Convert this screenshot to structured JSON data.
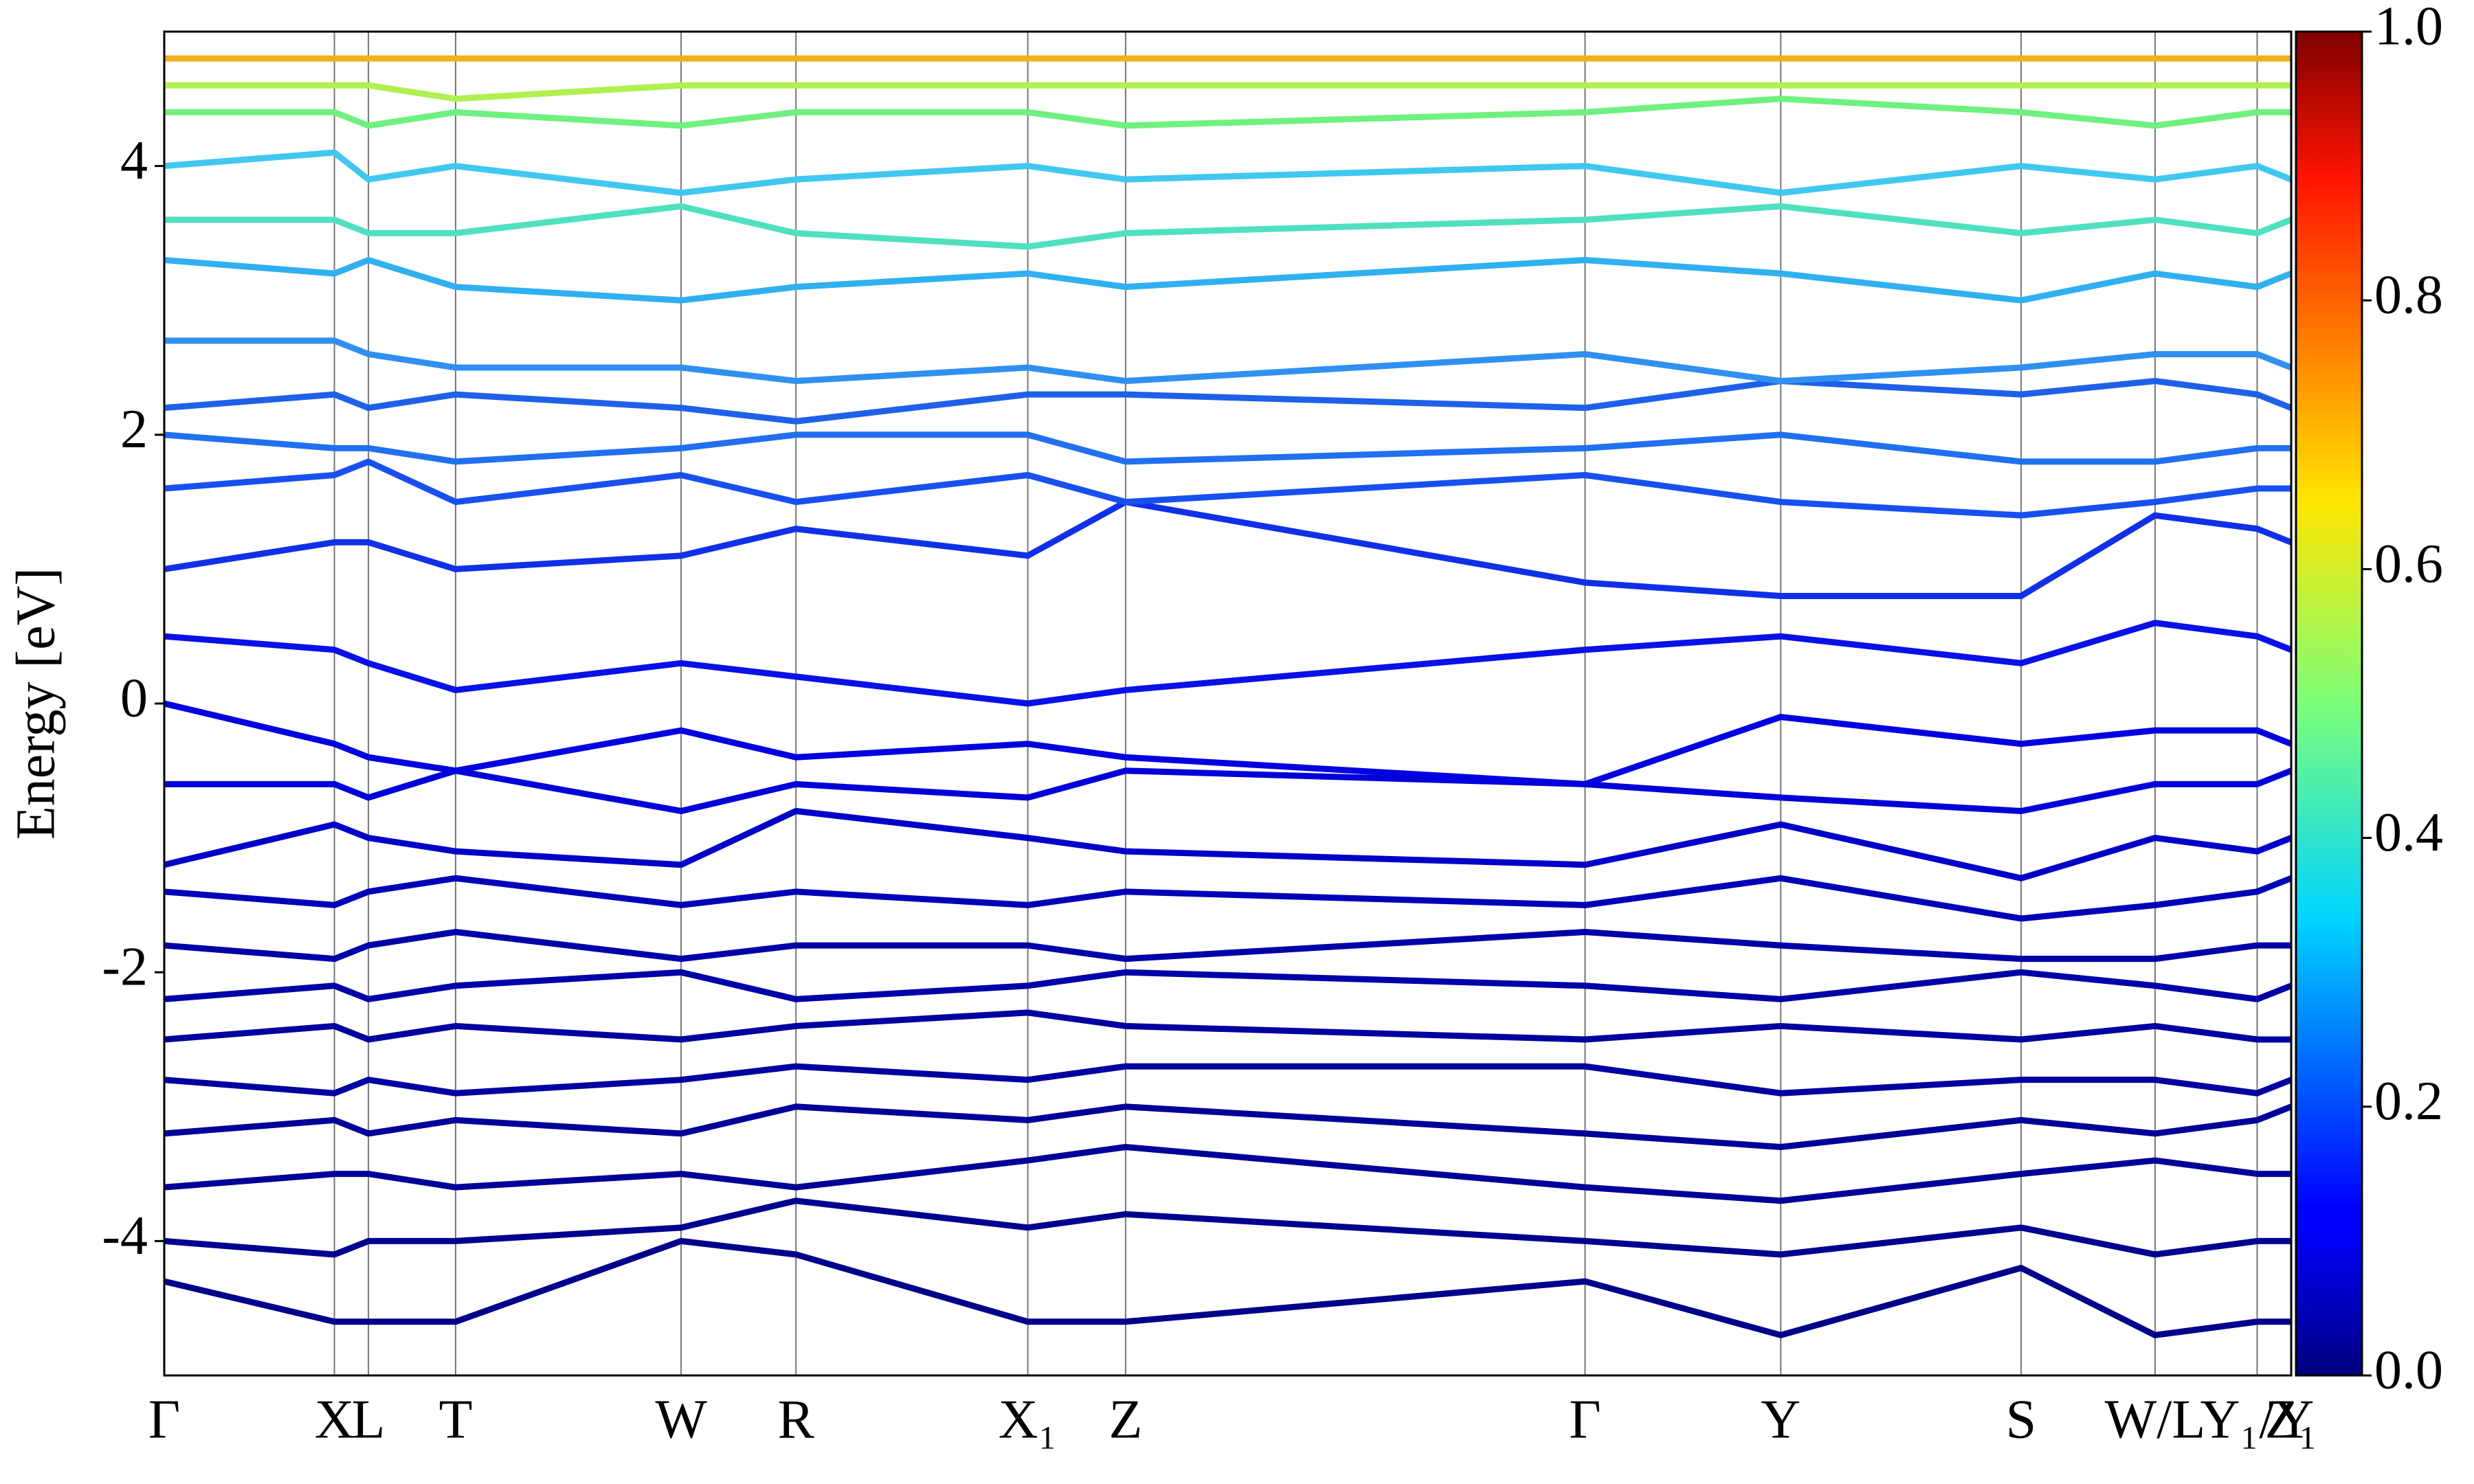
{
  "chart_data": {
    "type": "line",
    "ylabel": "Energy [eV]",
    "x": [
      0,
      0.08,
      0.096,
      0.137,
      0.243,
      0.297,
      0.406,
      0.452,
      0.668,
      0.76,
      0.873,
      0.936,
      0.984,
      1.0
    ],
    "xlim": [
      0,
      1.0
    ],
    "xticks": [
      {
        "value": 0,
        "label": "Γ"
      },
      {
        "value": 0.08,
        "label": "X"
      },
      {
        "value": 0.096,
        "label": "L"
      },
      {
        "value": 0.137,
        "label": "T"
      },
      {
        "value": 0.243,
        "label": "W"
      },
      {
        "value": 0.297,
        "label": "R"
      },
      {
        "value": 0.406,
        "label": "X₁"
      },
      {
        "value": 0.452,
        "label": "Z"
      },
      {
        "value": 0.668,
        "label": "Γ"
      },
      {
        "value": 0.76,
        "label": "Y"
      },
      {
        "value": 0.873,
        "label": "S"
      },
      {
        "value": 0.936,
        "label": "W/L"
      },
      {
        "value": 0.984,
        "label": "Y₁/Y"
      },
      {
        "value": 1.0,
        "label": "Z₁"
      }
    ],
    "ylim": [
      -5,
      5
    ],
    "yticks": [
      -4,
      -2,
      0,
      2,
      4
    ],
    "colorbar": {
      "lim": [
        0,
        1
      ],
      "ticks": [
        {
          "value": 0,
          "label": "0.0"
        },
        {
          "value": 0.2,
          "label": "0.2"
        },
        {
          "value": 0.4,
          "label": "0.4"
        },
        {
          "value": 0.6,
          "label": "0.6"
        },
        {
          "value": 0.8,
          "label": "0.8"
        },
        {
          "value": 1,
          "label": "1.0"
        }
      ]
    },
    "series": [
      {
        "color": "#00008b",
        "values": [
          -4.3,
          -4.6,
          -4.6,
          -4.6,
          -4.0,
          -4.1,
          -4.6,
          -4.6,
          -4.3,
          -4.7,
          -4.2,
          -4.7,
          -4.6,
          -4.6
        ]
      },
      {
        "color": "#000090",
        "values": [
          -4.0,
          -4.1,
          -4.0,
          -4.0,
          -3.9,
          -3.7,
          -3.9,
          -3.8,
          -4.0,
          -4.1,
          -3.9,
          -4.1,
          -4.0,
          -4.0
        ]
      },
      {
        "color": "#000099",
        "values": [
          -3.6,
          -3.5,
          -3.5,
          -3.6,
          -3.5,
          -3.6,
          -3.4,
          -3.3,
          -3.6,
          -3.7,
          -3.5,
          -3.4,
          -3.5,
          -3.5
        ]
      },
      {
        "color": "#000099",
        "values": [
          -3.2,
          -3.1,
          -3.2,
          -3.1,
          -3.2,
          -3.0,
          -3.1,
          -3.0,
          -3.2,
          -3.3,
          -3.1,
          -3.2,
          -3.1,
          -3.0
        ]
      },
      {
        "color": "#0000a0",
        "values": [
          -2.8,
          -2.9,
          -2.8,
          -2.9,
          -2.8,
          -2.7,
          -2.8,
          -2.7,
          -2.7,
          -2.9,
          -2.8,
          -2.8,
          -2.9,
          -2.8
        ]
      },
      {
        "color": "#0000a0",
        "values": [
          -2.5,
          -2.4,
          -2.5,
          -2.4,
          -2.5,
          -2.4,
          -2.3,
          -2.4,
          -2.5,
          -2.4,
          -2.5,
          -2.4,
          -2.5,
          -2.5
        ]
      },
      {
        "color": "#0000a8",
        "values": [
          -2.2,
          -2.1,
          -2.2,
          -2.1,
          -2.0,
          -2.2,
          -2.1,
          -2.0,
          -2.1,
          -2.2,
          -2.0,
          -2.1,
          -2.2,
          -2.1
        ]
      },
      {
        "color": "#0000a8",
        "values": [
          -1.8,
          -1.9,
          -1.8,
          -1.7,
          -1.9,
          -1.8,
          -1.8,
          -1.9,
          -1.7,
          -1.8,
          -1.9,
          -1.9,
          -1.8,
          -1.8
        ]
      },
      {
        "color": "#0000b8",
        "values": [
          -1.4,
          -1.5,
          -1.4,
          -1.3,
          -1.5,
          -1.4,
          -1.5,
          -1.4,
          -1.5,
          -1.3,
          -1.6,
          -1.5,
          -1.4,
          -1.3
        ]
      },
      {
        "color": "#0000c8",
        "values": [
          -1.2,
          -0.9,
          -1.0,
          -1.1,
          -1.2,
          -0.8,
          -1.0,
          -1.1,
          -1.2,
          -0.9,
          -1.3,
          -1.0,
          -1.1,
          -1.0
        ]
      },
      {
        "color": "#0000d8",
        "values": [
          -0.6,
          -0.6,
          -0.7,
          -0.5,
          -0.8,
          -0.6,
          -0.7,
          -0.5,
          -0.6,
          -0.7,
          -0.8,
          -0.6,
          -0.6,
          -0.5
        ]
      },
      {
        "color": "#0000e0",
        "values": [
          0.0,
          -0.3,
          -0.4,
          -0.5,
          -0.2,
          -0.4,
          -0.3,
          -0.4,
          -0.6,
          -0.1,
          -0.3,
          -0.2,
          -0.2,
          -0.3
        ]
      },
      {
        "color": "#0a10e8",
        "values": [
          0.5,
          0.4,
          0.3,
          0.1,
          0.3,
          0.2,
          0.0,
          0.1,
          0.4,
          0.5,
          0.3,
          0.6,
          0.5,
          0.4
        ]
      },
      {
        "color": "#1030e8",
        "values": [
          1.0,
          1.2,
          1.2,
          1.0,
          1.1,
          1.3,
          1.1,
          1.5,
          0.9,
          0.8,
          0.8,
          1.4,
          1.3,
          1.2
        ]
      },
      {
        "color": "#1850f0",
        "values": [
          1.6,
          1.7,
          1.8,
          1.5,
          1.7,
          1.5,
          1.7,
          1.5,
          1.7,
          1.5,
          1.4,
          1.5,
          1.6,
          1.6
        ]
      },
      {
        "color": "#2070f0",
        "values": [
          2.0,
          1.9,
          1.9,
          1.8,
          1.9,
          2.0,
          2.0,
          1.8,
          1.9,
          2.0,
          1.8,
          1.8,
          1.9,
          1.9
        ]
      },
      {
        "color": "#1e60e8",
        "values": [
          2.2,
          2.3,
          2.2,
          2.3,
          2.2,
          2.1,
          2.3,
          2.3,
          2.2,
          2.4,
          2.3,
          2.4,
          2.3,
          2.2
        ]
      },
      {
        "color": "#3090f0",
        "values": [
          2.7,
          2.7,
          2.6,
          2.5,
          2.5,
          2.4,
          2.5,
          2.4,
          2.6,
          2.4,
          2.5,
          2.6,
          2.6,
          2.5
        ]
      },
      {
        "color": "#30b0f0",
        "values": [
          3.3,
          3.2,
          3.3,
          3.1,
          3.0,
          3.1,
          3.2,
          3.1,
          3.3,
          3.2,
          3.0,
          3.2,
          3.1,
          3.2
        ]
      },
      {
        "color": "#50e0c0",
        "values": [
          3.6,
          3.6,
          3.5,
          3.5,
          3.7,
          3.5,
          3.4,
          3.5,
          3.6,
          3.7,
          3.5,
          3.6,
          3.5,
          3.6
        ]
      },
      {
        "color": "#40c8f0",
        "values": [
          4.0,
          4.1,
          3.9,
          4.0,
          3.8,
          3.9,
          4.0,
          3.9,
          4.0,
          3.8,
          4.0,
          3.9,
          4.0,
          3.9
        ]
      },
      {
        "color": "#70f080",
        "values": [
          4.4,
          4.4,
          4.3,
          4.4,
          4.3,
          4.4,
          4.4,
          4.3,
          4.4,
          4.5,
          4.4,
          4.3,
          4.4,
          4.4
        ]
      },
      {
        "color": "#b0f050",
        "values": [
          4.6,
          4.6,
          4.6,
          4.5,
          4.6,
          4.6,
          4.6,
          4.6,
          4.6,
          4.6,
          4.6,
          4.6,
          4.6,
          4.6
        ]
      },
      {
        "color": "#f0b020",
        "values": [
          4.8,
          4.8,
          4.8,
          4.8,
          4.8,
          4.8,
          4.8,
          4.8,
          4.8,
          4.8,
          4.8,
          4.8,
          4.8,
          4.8
        ]
      }
    ]
  }
}
